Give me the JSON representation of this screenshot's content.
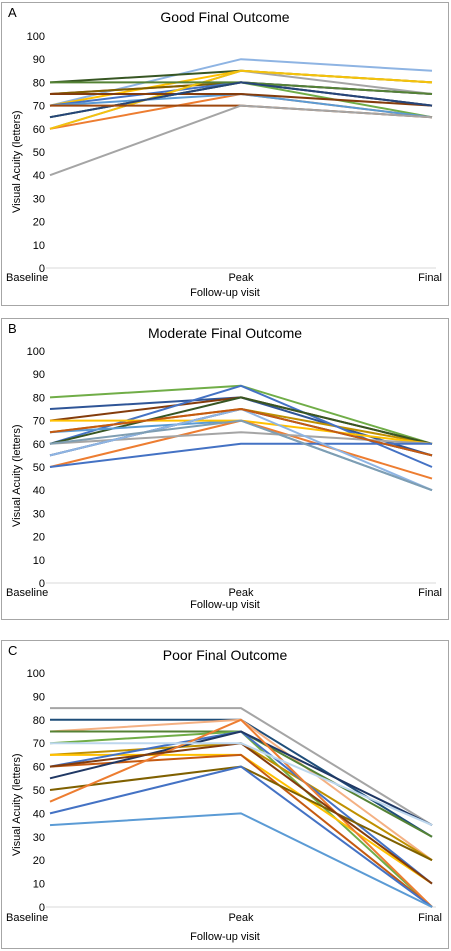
{
  "chart_data": [
    {
      "type": "line",
      "panel": "A",
      "title": "Good Final Outcome",
      "xlabel": "Follow-up visit",
      "ylabel": "Visual Acuity (letters)",
      "categories": [
        "Baseline",
        "Peak",
        "Final"
      ],
      "ylim": [
        0,
        100
      ],
      "yticks": [
        0,
        10,
        20,
        30,
        40,
        50,
        60,
        70,
        80,
        90,
        100
      ],
      "grid": false,
      "series": [
        {
          "values": [
            70,
            90,
            85
          ],
          "color": "#8eb4e3"
        },
        {
          "values": [
            80,
            85,
            80
          ],
          "color": "#375623"
        },
        {
          "values": [
            75,
            80,
            75
          ],
          "color": "#c0504d"
        },
        {
          "values": [
            70,
            85,
            80
          ],
          "color": "#ffc000"
        },
        {
          "values": [
            65,
            80,
            75
          ],
          "color": "#2f5597"
        },
        {
          "values": [
            60,
            85,
            75
          ],
          "color": "#a5a5a5"
        },
        {
          "values": [
            75,
            80,
            70
          ],
          "color": "#7f6000"
        },
        {
          "values": [
            60,
            75,
            65
          ],
          "color": "#ed7d31"
        },
        {
          "values": [
            70,
            80,
            70
          ],
          "color": "#4472c4"
        },
        {
          "values": [
            65,
            80,
            65
          ],
          "color": "#70ad47"
        },
        {
          "values": [
            70,
            75,
            65
          ],
          "color": "#5b9bd5"
        },
        {
          "values": [
            60,
            85,
            80
          ],
          "color": "#f4c20d"
        },
        {
          "values": [
            80,
            80,
            75
          ],
          "color": "#548235"
        },
        {
          "values": [
            75,
            75,
            70
          ],
          "color": "#843c0c"
        },
        {
          "values": [
            65,
            80,
            70
          ],
          "color": "#264478"
        },
        {
          "values": [
            70,
            70,
            65
          ],
          "color": "#9e480e"
        },
        {
          "values": [
            40,
            70,
            65
          ],
          "color": "#a5a5a5"
        }
      ]
    },
    {
      "type": "line",
      "panel": "B",
      "title": "Moderate Final Outcome",
      "xlabel": "Follow-up  visit",
      "ylabel": "Visual Acuity (letters)",
      "categories": [
        "Baseline",
        "Peak",
        "Final"
      ],
      "ylim": [
        0,
        100
      ],
      "yticks": [
        0,
        10,
        20,
        30,
        40,
        50,
        60,
        70,
        80,
        90,
        100
      ],
      "grid": false,
      "series": [
        {
          "values": [
            80,
            85,
            60
          ],
          "color": "#70ad47"
        },
        {
          "values": [
            75,
            80,
            55
          ],
          "color": "#2f5597"
        },
        {
          "values": [
            70,
            80,
            60
          ],
          "color": "#843c0c"
        },
        {
          "values": [
            65,
            75,
            60
          ],
          "color": "#bf9000"
        },
        {
          "values": [
            60,
            85,
            50
          ],
          "color": "#4472c4"
        },
        {
          "values": [
            55,
            75,
            55
          ],
          "color": "#203864"
        },
        {
          "values": [
            60,
            80,
            60
          ],
          "color": "#375623"
        },
        {
          "values": [
            65,
            70,
            40
          ],
          "color": "#5b9bd5"
        },
        {
          "values": [
            70,
            70,
            60
          ],
          "color": "#ffc000"
        },
        {
          "values": [
            50,
            70,
            45
          ],
          "color": "#ed7d31"
        },
        {
          "values": [
            60,
            65,
            60
          ],
          "color": "#a5a5a5"
        },
        {
          "values": [
            50,
            60,
            60
          ],
          "color": "#4472c4"
        },
        {
          "values": [
            55,
            75,
            40
          ],
          "color": "#8eb4e3"
        },
        {
          "values": [
            65,
            75,
            55
          ],
          "color": "#c55a11"
        },
        {
          "values": [
            60,
            70,
            40
          ],
          "color": "#7f9eb2"
        }
      ]
    },
    {
      "type": "line",
      "panel": "C",
      "title": "Poor Final Outcome",
      "xlabel": "Follow-up  visit",
      "ylabel": "Visual Acuity (letters)",
      "categories": [
        "Baseline",
        "Peak",
        "Final"
      ],
      "ylim": [
        0,
        100
      ],
      "yticks": [
        0,
        10,
        20,
        30,
        40,
        50,
        60,
        70,
        80,
        90,
        100
      ],
      "grid": false,
      "series": [
        {
          "values": [
            85,
            85,
            35
          ],
          "color": "#a5a5a5"
        },
        {
          "values": [
            80,
            80,
            30
          ],
          "color": "#1f4e79"
        },
        {
          "values": [
            75,
            80,
            20
          ],
          "color": "#f4b183"
        },
        {
          "values": [
            75,
            75,
            30
          ],
          "color": "#548235"
        },
        {
          "values": [
            70,
            75,
            0
          ],
          "color": "#70ad47"
        },
        {
          "values": [
            65,
            70,
            20
          ],
          "color": "#bf9000"
        },
        {
          "values": [
            65,
            65,
            10
          ],
          "color": "#ffc000"
        },
        {
          "values": [
            60,
            65,
            0
          ],
          "color": "#c55a11"
        },
        {
          "values": [
            60,
            75,
            10
          ],
          "color": "#4472c4"
        },
        {
          "values": [
            55,
            75,
            35
          ],
          "color": "#203864"
        },
        {
          "values": [
            50,
            60,
            20
          ],
          "color": "#7f6000"
        },
        {
          "values": [
            45,
            80,
            0
          ],
          "color": "#ed7d31"
        },
        {
          "values": [
            40,
            60,
            0
          ],
          "color": "#4472c4"
        },
        {
          "values": [
            35,
            40,
            0
          ],
          "color": "#5b9bd5"
        },
        {
          "values": [
            60,
            70,
            10
          ],
          "color": "#843c0c"
        },
        {
          "values": [
            70,
            70,
            35
          ],
          "color": "#bdd7ee"
        }
      ]
    }
  ]
}
